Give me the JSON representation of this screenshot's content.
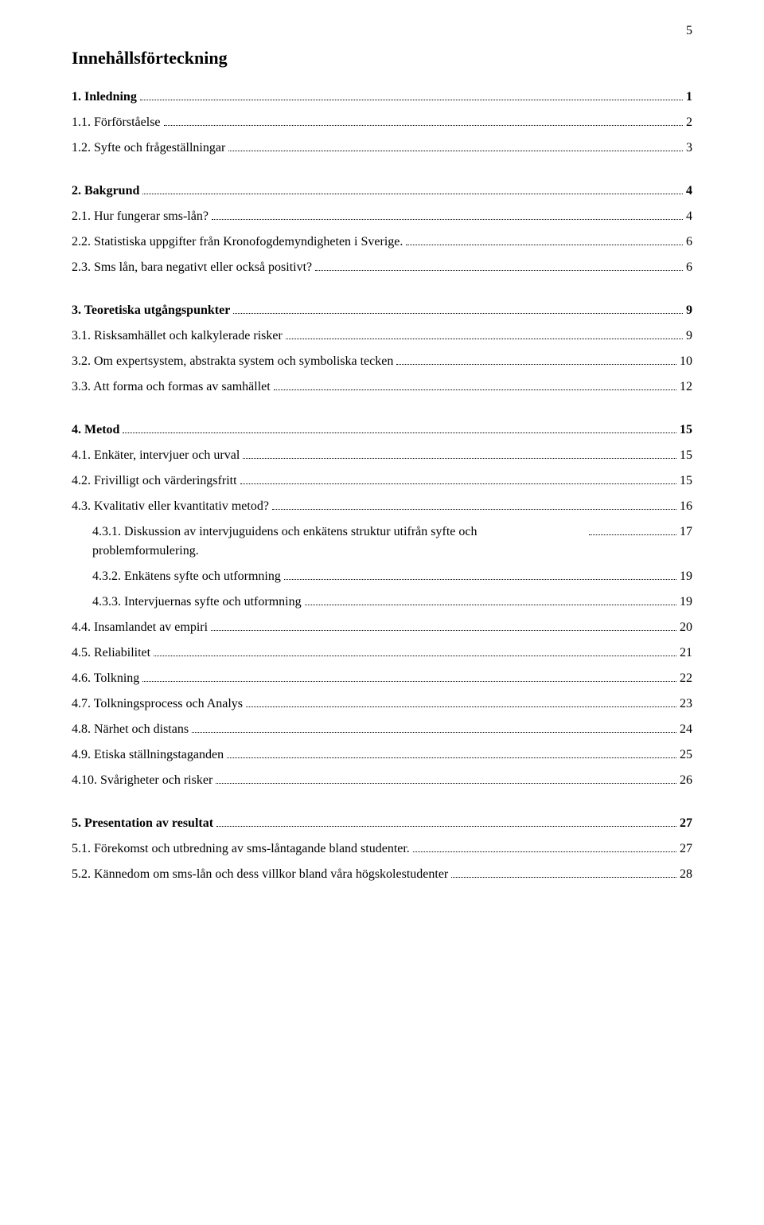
{
  "page_number": "5",
  "title": "Innehållsförteckning",
  "entries": [
    {
      "level": 0,
      "indent": 1,
      "bold": true,
      "label": "1. Inledning",
      "page": "1",
      "spacer_before": false
    },
    {
      "level": 1,
      "indent": 1,
      "bold": false,
      "label": "1.1. Förförståelse",
      "page": "2"
    },
    {
      "level": 1,
      "indent": 1,
      "bold": false,
      "label": "1.2. Syfte och frågeställningar",
      "page": "3"
    },
    {
      "level": 0,
      "indent": 1,
      "bold": true,
      "label": "2. Bakgrund",
      "page": "4",
      "spacer_before": true
    },
    {
      "level": 1,
      "indent": 1,
      "bold": false,
      "label": "2.1. Hur fungerar sms-lån?",
      "page": "4"
    },
    {
      "level": 1,
      "indent": 1,
      "bold": false,
      "label": "2.2. Statistiska uppgifter från Kronofogdemyndigheten i Sverige.",
      "page": "6"
    },
    {
      "level": 1,
      "indent": 1,
      "bold": false,
      "label": "2.3. Sms lån, bara negativt eller också positivt?",
      "page": "6"
    },
    {
      "level": 0,
      "indent": 1,
      "bold": true,
      "label": "3. Teoretiska utgångspunkter",
      "page": "9",
      "spacer_before": true
    },
    {
      "level": 1,
      "indent": 1,
      "bold": false,
      "label": "3.1. Risksamhället och kalkylerade risker",
      "page": "9"
    },
    {
      "level": 1,
      "indent": 1,
      "bold": false,
      "label": "3.2. Om expertsystem, abstrakta system och symboliska tecken",
      "page": "10"
    },
    {
      "level": 1,
      "indent": 1,
      "bold": false,
      "label": "3.3. Att forma och formas av samhället",
      "page": "12"
    },
    {
      "level": 0,
      "indent": 1,
      "bold": true,
      "label": "4. Metod",
      "page": "15",
      "spacer_before": true
    },
    {
      "level": 1,
      "indent": 1,
      "bold": false,
      "label": "4.1. Enkäter, intervjuer och urval",
      "page": "15"
    },
    {
      "level": 1,
      "indent": 1,
      "bold": false,
      "label": "4.2. Frivilligt och värderingsfritt",
      "page": "15"
    },
    {
      "level": 1,
      "indent": 1,
      "bold": false,
      "label": "4.3. Kvalitativ eller kvantitativ metod?",
      "page": "16"
    },
    {
      "level": 2,
      "indent": 2,
      "bold": false,
      "label": "4.3.1. Diskussion av intervjuguidens och enkätens struktur utifrån syfte och problemformulering.",
      "page": "17",
      "multiline": true
    },
    {
      "level": 2,
      "indent": 2,
      "bold": false,
      "label": "4.3.2. Enkätens syfte och utformning",
      "page": "19"
    },
    {
      "level": 2,
      "indent": 2,
      "bold": false,
      "label": "4.3.3. Intervjuernas syfte och utformning",
      "page": "19"
    },
    {
      "level": 1,
      "indent": 1,
      "bold": false,
      "label": "4.4. Insamlandet av empiri",
      "page": "20"
    },
    {
      "level": 1,
      "indent": 1,
      "bold": false,
      "label": "4.5. Reliabilitet",
      "page": "21"
    },
    {
      "level": 1,
      "indent": 1,
      "bold": false,
      "label": "4.6. Tolkning",
      "page": "22"
    },
    {
      "level": 1,
      "indent": 1,
      "bold": false,
      "label": "4.7. Tolkningsprocess och Analys",
      "page": "23"
    },
    {
      "level": 1,
      "indent": 1,
      "bold": false,
      "label": "4.8. Närhet och distans",
      "page": "24"
    },
    {
      "level": 1,
      "indent": 1,
      "bold": false,
      "label": "4.9. Etiska ställningstaganden",
      "page": "25"
    },
    {
      "level": 1,
      "indent": 1,
      "bold": false,
      "label": "4.10. Svårigheter och risker",
      "page": "26"
    },
    {
      "level": 0,
      "indent": 1,
      "bold": true,
      "label": "5. Presentation av resultat",
      "page": "27",
      "spacer_before": true
    },
    {
      "level": 1,
      "indent": 1,
      "bold": false,
      "label": "5.1. Förekomst och utbredning av sms-låntagande bland studenter.",
      "page": "27"
    },
    {
      "level": 1,
      "indent": 1,
      "bold": false,
      "label": "5.2. Kännedom om sms-lån och dess villkor bland våra högskolestudenter",
      "page": "28"
    }
  ]
}
